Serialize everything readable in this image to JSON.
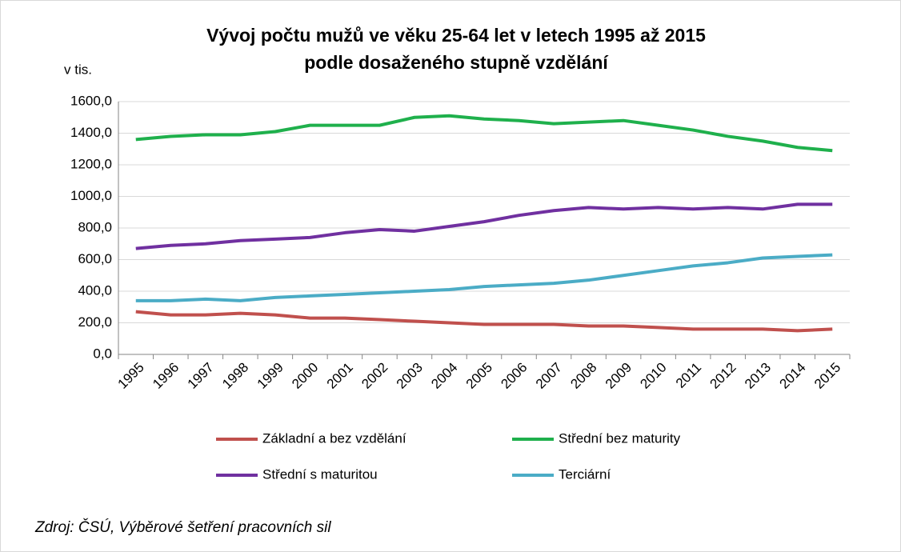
{
  "chart_data": {
    "type": "line",
    "title": [
      "Vývoj počtu mužů ve věku 25-64 let v letech 1995 až 2015",
      "podle dosaženého stupně vzdělání"
    ],
    "y_axis_label": "v tis.",
    "categories": [
      "1995",
      "1996",
      "1997",
      "1998",
      "1999",
      "2000",
      "2001",
      "2002",
      "2003",
      "2004",
      "2005",
      "2006",
      "2007",
      "2008",
      "2009",
      "2010",
      "2011",
      "2012",
      "2013",
      "2014",
      "2015"
    ],
    "series": [
      {
        "name": "Základní a bez vzdělání",
        "color": "#c0504d",
        "values": [
          270,
          250,
          250,
          260,
          250,
          230,
          230,
          220,
          210,
          200,
          190,
          190,
          190,
          180,
          180,
          170,
          160,
          160,
          160,
          150,
          160
        ]
      },
      {
        "name": "Střední bez maturity",
        "color": "#1fb04c",
        "values": [
          1360,
          1380,
          1390,
          1390,
          1410,
          1450,
          1450,
          1450,
          1500,
          1510,
          1490,
          1480,
          1460,
          1470,
          1480,
          1450,
          1420,
          1380,
          1350,
          1310,
          1290
        ]
      },
      {
        "name": "Střední s maturitou",
        "color": "#7030a0",
        "values": [
          670,
          690,
          700,
          720,
          730,
          740,
          770,
          790,
          780,
          810,
          840,
          880,
          910,
          930,
          920,
          930,
          920,
          930,
          920,
          950,
          950
        ]
      },
      {
        "name": "Terciární",
        "color": "#4bacc6",
        "values": [
          340,
          340,
          350,
          340,
          360,
          370,
          380,
          390,
          400,
          410,
          430,
          440,
          450,
          470,
          500,
          530,
          560,
          580,
          610,
          620,
          630
        ]
      }
    ],
    "ylim": [
      0,
      1600
    ],
    "yticks": [
      {
        "value": 0,
        "label": "0,0"
      },
      {
        "value": 200,
        "label": "200,0"
      },
      {
        "value": 400,
        "label": "400,0"
      },
      {
        "value": 600,
        "label": "600,0"
      },
      {
        "value": 800,
        "label": "800,0"
      },
      {
        "value": 1000,
        "label": "1000,0"
      },
      {
        "value": 1200,
        "label": "1200,0"
      },
      {
        "value": 1400,
        "label": "1400,0"
      },
      {
        "value": 1600,
        "label": "1600,0"
      }
    ],
    "grid": true,
    "legend": "bottom",
    "source": "Zdroj: ČSÚ, Výběrové šetření pracovních sil"
  }
}
